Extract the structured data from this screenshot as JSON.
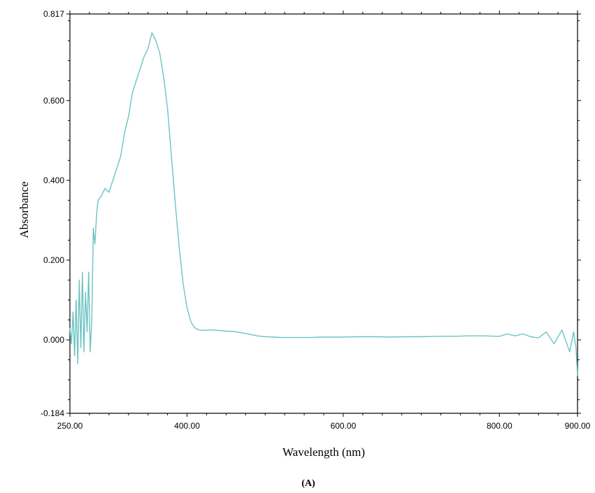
{
  "chart_data": {
    "type": "line",
    "title": "",
    "xlabel": "Wavelength (nm)",
    "ylabel": "Absorbance",
    "panel_label": "(A)",
    "xlim": [
      250,
      900
    ],
    "ylim": [
      -0.184,
      0.817
    ],
    "xticks": [
      {
        "value": 250,
        "label": "250.00"
      },
      {
        "value": 400,
        "label": "400.00"
      },
      {
        "value": 600,
        "label": "600.00"
      },
      {
        "value": 800,
        "label": "800.00"
      },
      {
        "value": 900,
        "label": "900.00"
      }
    ],
    "yticks": [
      {
        "value": 0.817,
        "label": "0.817"
      },
      {
        "value": 0.6,
        "label": "0.600"
      },
      {
        "value": 0.4,
        "label": "0.400"
      },
      {
        "value": 0.2,
        "label": "0.200"
      },
      {
        "value": 0.0,
        "label": "0.000"
      },
      {
        "value": -0.184,
        "label": "-0.184"
      }
    ],
    "grid": false,
    "legend": "none",
    "series": [
      {
        "color": "#6cc4c4",
        "x": [
          250,
          252,
          254,
          256,
          258,
          260,
          262,
          264,
          266,
          268,
          270,
          272,
          274,
          276,
          278,
          280,
          282,
          284,
          286,
          290,
          295,
          300,
          305,
          310,
          315,
          320,
          325,
          330,
          335,
          340,
          345,
          350,
          355,
          360,
          365,
          370,
          375,
          380,
          385,
          390,
          395,
          400,
          405,
          410,
          415,
          420,
          430,
          440,
          450,
          460,
          470,
          480,
          490,
          500,
          510,
          520,
          530,
          540,
          550,
          560,
          570,
          580,
          600,
          620,
          640,
          660,
          680,
          700,
          720,
          740,
          760,
          780,
          800,
          810,
          820,
          830,
          840,
          850,
          860,
          870,
          880,
          890,
          895,
          898,
          900
        ],
        "y": [
          0.03,
          -0.01,
          0.07,
          -0.04,
          0.1,
          -0.06,
          0.15,
          -0.02,
          0.17,
          -0.03,
          0.12,
          0.02,
          0.17,
          -0.03,
          0.05,
          0.28,
          0.24,
          0.31,
          0.35,
          0.36,
          0.38,
          0.37,
          0.4,
          0.43,
          0.46,
          0.52,
          0.56,
          0.62,
          0.65,
          0.68,
          0.71,
          0.73,
          0.77,
          0.75,
          0.72,
          0.66,
          0.58,
          0.46,
          0.34,
          0.23,
          0.14,
          0.08,
          0.045,
          0.03,
          0.025,
          0.024,
          0.025,
          0.024,
          0.022,
          0.021,
          0.018,
          0.014,
          0.01,
          0.008,
          0.007,
          0.006,
          0.006,
          0.006,
          0.006,
          0.006,
          0.007,
          0.007,
          0.007,
          0.008,
          0.008,
          0.007,
          0.008,
          0.008,
          0.009,
          0.009,
          0.01,
          0.01,
          0.009,
          0.015,
          0.01,
          0.015,
          0.008,
          0.005,
          0.02,
          -0.01,
          0.025,
          -0.03,
          0.02,
          -0.02,
          -0.09
        ]
      }
    ]
  }
}
